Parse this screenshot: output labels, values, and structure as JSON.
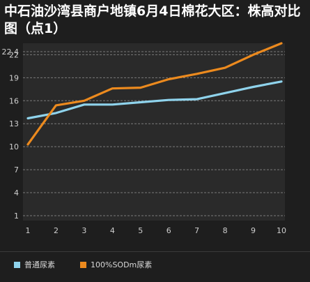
{
  "title": "中石油沙湾县商户地镇6月4日棉花大区：株高对比图（点1）",
  "colors": {
    "background": "#1e1e1e",
    "plot_bg": "#2a2a2a",
    "grid": "#7a7a7a",
    "axis_text": "#cfcfcf",
    "series1": "#8fd3ec",
    "series2": "#ec8a1e"
  },
  "chart_data": {
    "type": "line",
    "title": "中石油沙湾县商户地镇6月4日棉花大区：株高对比图（点1）",
    "x": [
      1,
      2,
      3,
      4,
      5,
      6,
      7,
      8,
      9,
      10
    ],
    "yticks": [
      1,
      4,
      7,
      10,
      13,
      16,
      19,
      22,
      22.4
    ],
    "ylim": [
      1,
      22.4
    ],
    "grid": true,
    "legend_position": "bottom",
    "series": [
      {
        "name": "普通尿素",
        "color": "#8fd3ec",
        "values": [
          13.7,
          14.4,
          15.5,
          15.5,
          15.8,
          16.1,
          16.2,
          17.0,
          17.8,
          18.5
        ]
      },
      {
        "name": "100%SODm尿素",
        "color": "#ec8a1e",
        "values": [
          10.3,
          15.4,
          16.0,
          17.6,
          17.7,
          18.8,
          19.5,
          20.3,
          22.0,
          24.0
        ]
      }
    ]
  }
}
